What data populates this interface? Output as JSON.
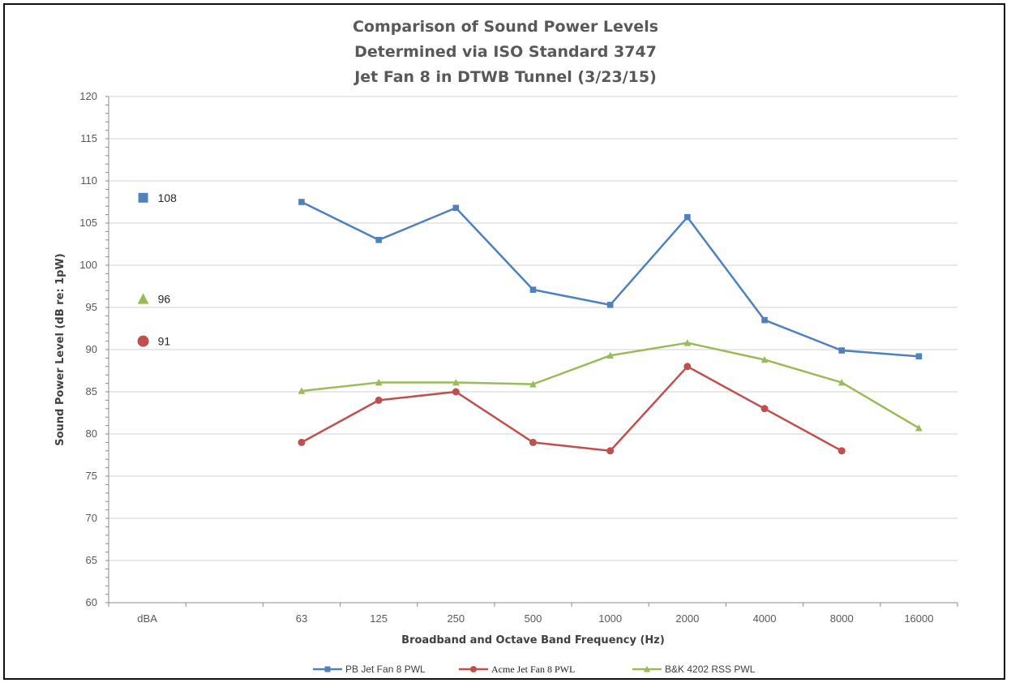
{
  "chart_data": {
    "type": "line",
    "title_lines": [
      "Comparison of Sound Power Levels",
      "Determined via ISO Standard 3747",
      "Jet Fan 8 in DTWB Tunnel (3/23/15)"
    ],
    "xlabel": "Broadband and Octave Band Frequency (Hz)",
    "ylabel": "Sound Power Level (dB re: 1pW)",
    "ylim": [
      60,
      120
    ],
    "y_ticks": [
      60,
      65,
      70,
      75,
      80,
      85,
      90,
      95,
      100,
      105,
      110,
      115,
      120
    ],
    "grid": true,
    "legend_position": "bottom",
    "categories": [
      "dBA",
      "",
      "63",
      "125",
      "250",
      "500",
      "1000",
      "2000",
      "4000",
      "8000",
      "16000"
    ],
    "broadband": [
      {
        "series": "PB Jet Fan 8 PWL",
        "value": 108,
        "label": "108"
      },
      {
        "series": "B&K 4202 RSS PWL",
        "value": 96,
        "label": "96"
      },
      {
        "series": "Acme Jet Fan 8 PWL",
        "value": 91,
        "label": "91"
      }
    ],
    "series": [
      {
        "name": "PB Jet Fan 8 PWL",
        "color": "#4f81bd",
        "marker": "square",
        "values": [
          null,
          null,
          107.5,
          103,
          106.8,
          97.1,
          95.3,
          105.7,
          93.5,
          89.9,
          89.2
        ]
      },
      {
        "name": "Acme Jet Fan 8 PWL",
        "color": "#c0504d",
        "marker": "circle",
        "values": [
          null,
          null,
          79,
          84,
          85,
          79,
          78,
          88,
          83,
          78,
          null
        ]
      },
      {
        "name": "B&K 4202 RSS PWL",
        "color": "#9bbb59",
        "marker": "triangle",
        "values": [
          null,
          null,
          85.1,
          86.1,
          86.1,
          85.9,
          89.3,
          90.8,
          88.8,
          86.1,
          80.7
        ]
      }
    ]
  }
}
